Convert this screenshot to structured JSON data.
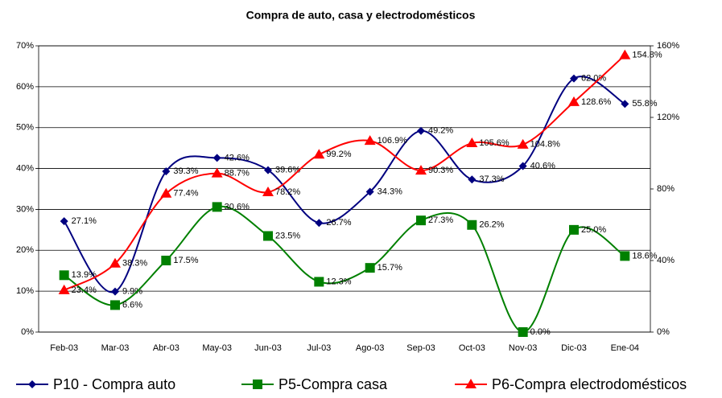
{
  "chart_data": {
    "type": "line",
    "title": "Compra de auto, casa y electrodomésticos",
    "categories": [
      "Feb-03",
      "Mar-03",
      "Abr-03",
      "May-03",
      "Jun-03",
      "Jul-03",
      "Ago-03",
      "Sep-03",
      "Oct-03",
      "Nov-03",
      "Dic-03",
      "Ene-04"
    ],
    "ylim": [
      0,
      70
    ],
    "yticks": [
      {
        "value": 0,
        "label": "0%"
      },
      {
        "value": 10,
        "label": "10%"
      },
      {
        "value": 20,
        "label": "20%"
      },
      {
        "value": 30,
        "label": "30%"
      },
      {
        "value": 40,
        "label": "40%"
      },
      {
        "value": 50,
        "label": "50%"
      },
      {
        "value": 60,
        "label": "60%"
      },
      {
        "value": 70,
        "label": "70%"
      }
    ],
    "y2lim": [
      0,
      160
    ],
    "y2ticks": [
      {
        "value": 0,
        "label": "0%"
      },
      {
        "value": 40,
        "label": "40%"
      },
      {
        "value": 80,
        "label": "80%"
      },
      {
        "value": 120,
        "label": "120%"
      },
      {
        "value": 160,
        "label": "160%"
      }
    ],
    "grid": true,
    "series": [
      {
        "name": "P10 - Compra auto",
        "color": "#000080",
        "marker": "diamond",
        "values": [
          27.1,
          9.9,
          39.3,
          42.6,
          39.6,
          26.7,
          34.3,
          49.2,
          37.3,
          40.6,
          62.0,
          55.8
        ],
        "value_labels": [
          "27.1%",
          "9.9%",
          "39.3%",
          "42.6%",
          "39.6%",
          "26.7%",
          "34.3%",
          "49.2%",
          "37.3%",
          "40.6%",
          "62.0%",
          "55.8%"
        ]
      },
      {
        "name": "P5-Compra casa",
        "color": "#008000",
        "marker": "square",
        "values": [
          13.9,
          6.6,
          17.5,
          30.6,
          23.5,
          12.3,
          15.7,
          27.3,
          26.2,
          0.0,
          25.0,
          18.6
        ],
        "value_labels": [
          "13.9%",
          "6.6%",
          "17.5%",
          "30.6%",
          "23.5%",
          "12.3%",
          "15.7%",
          "27.3%",
          "26.2%",
          "0.0%",
          "25.0%",
          "18.6%"
        ]
      },
      {
        "name": "P6-Compra electrodomésticos",
        "color": "#ff0000",
        "marker": "triangle",
        "axis": "y2",
        "values": [
          23.4,
          38.3,
          77.4,
          88.7,
          78.2,
          99.2,
          106.9,
          90.3,
          105.6,
          104.8,
          128.6,
          154.8
        ],
        "value_labels": [
          "23.4%",
          "38.3%",
          "77.4%",
          "88.7%",
          "78.2%",
          "99.2%",
          "106.9%",
          "90.3%",
          "105.6%",
          "104.8%",
          "128.6%",
          "154.8%"
        ]
      }
    ]
  }
}
